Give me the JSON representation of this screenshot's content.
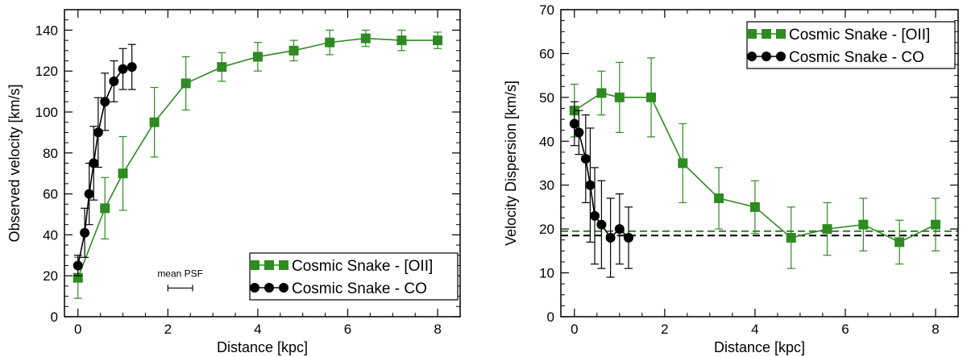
{
  "chart_data": [
    {
      "type": "line",
      "title": "",
      "xlabel": "Distance [kpc]",
      "ylabel": "Observed velocity [km/s]",
      "xlim": [
        -0.3,
        8.5
      ],
      "ylim": [
        0,
        150
      ],
      "xticks": [
        0,
        2,
        4,
        6,
        8
      ],
      "yticks": [
        0,
        20,
        40,
        60,
        80,
        100,
        120,
        140
      ],
      "xtick_labels": [
        "0",
        "2",
        "4",
        "6",
        "8"
      ],
      "ytick_labels": [
        "0",
        "20",
        "40",
        "60",
        "80",
        "100",
        "120",
        "140"
      ],
      "legend_position": "bottom-right",
      "series": [
        {
          "name": "Cosmic Snake - [OII]",
          "color": "#2e8b22",
          "marker": "square",
          "x": [
            0,
            0.6,
            1.0,
            1.7,
            2.4,
            3.2,
            4.0,
            4.8,
            5.6,
            6.4,
            7.2,
            8.0
          ],
          "y": [
            19,
            53,
            70,
            95,
            114,
            122,
            127,
            130,
            134,
            136,
            135,
            135
          ],
          "err": [
            10,
            15,
            18,
            17,
            13,
            7,
            7,
            5,
            6,
            4,
            5,
            4
          ]
        },
        {
          "name": "Cosmic Snake - CO",
          "color": "#000000",
          "marker": "circle",
          "x": [
            0,
            0.15,
            0.25,
            0.35,
            0.45,
            0.6,
            0.8,
            1.0,
            1.2
          ],
          "y": [
            25,
            41,
            60,
            75,
            90,
            105,
            115,
            121,
            122
          ],
          "err": [
            5,
            12,
            15,
            18,
            17,
            14,
            10,
            10,
            11
          ]
        }
      ],
      "annotation": {
        "text": "mean PSF",
        "x_start": 2.0,
        "x_end": 2.55,
        "y": 14
      }
    },
    {
      "type": "line",
      "title": "",
      "xlabel": "Distance [kpc]",
      "ylabel": "Velocity Dispersion [km/s]",
      "xlim": [
        -0.3,
        8.5
      ],
      "ylim": [
        0,
        70
      ],
      "xticks": [
        0,
        2,
        4,
        6,
        8
      ],
      "yticks": [
        0,
        10,
        20,
        30,
        40,
        50,
        60,
        70
      ],
      "xtick_labels": [
        "0",
        "2",
        "4",
        "6",
        "8"
      ],
      "ytick_labels": [
        "0",
        "10",
        "20",
        "30",
        "40",
        "50",
        "60",
        "70"
      ],
      "legend_position": "top-right",
      "series": [
        {
          "name": "Cosmic Snake - [OII]",
          "color": "#2e8b22",
          "marker": "square",
          "x": [
            0,
            0.6,
            1.0,
            1.7,
            2.4,
            3.2,
            4.0,
            4.8,
            5.6,
            6.4,
            7.2,
            8.0
          ],
          "y": [
            47,
            51,
            50,
            50,
            35,
            27,
            25,
            18,
            20,
            21,
            17,
            21
          ],
          "err": [
            6,
            5,
            8,
            9,
            9,
            7,
            6,
            7,
            6,
            6,
            5,
            6
          ]
        },
        {
          "name": "Cosmic Snake - CO",
          "color": "#000000",
          "marker": "circle",
          "x": [
            0,
            0.1,
            0.25,
            0.35,
            0.45,
            0.6,
            0.8,
            1.0,
            1.2
          ],
          "y": [
            44,
            42,
            36,
            30,
            23,
            21,
            18,
            20,
            18
          ],
          "err": [
            5,
            5,
            10,
            13,
            11,
            10,
            9,
            8,
            7
          ]
        }
      ],
      "reference_lines": [
        {
          "y": 19.5,
          "color": "#2e8b22",
          "style": "dashed"
        },
        {
          "y": 18.5,
          "color": "#000000",
          "style": "dashed"
        }
      ]
    }
  ]
}
